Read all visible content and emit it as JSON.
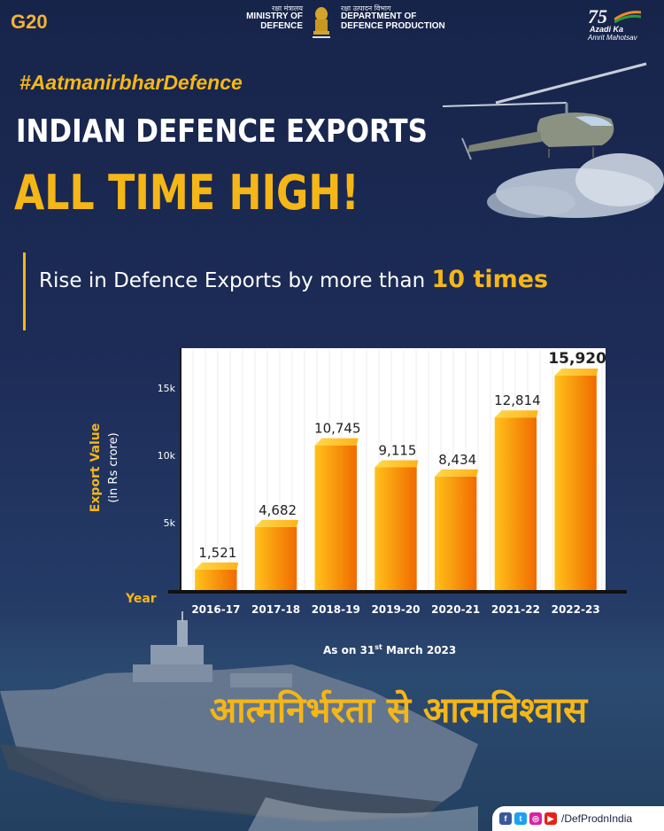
{
  "header": {
    "g20": "G20",
    "ministry_hindi": "रक्षा मंत्रालय",
    "ministry_en_1": "MINISTRY OF",
    "ministry_en_2": "DEFENCE",
    "ddp_hindi": "रक्षा उत्पादन विभाग",
    "ddp_en_1": "DEPARTMENT OF",
    "ddp_en_2": "DEFENCE PRODUCTION",
    "aka_number": "75",
    "aka_line1": "Azadi Ka",
    "aka_line2": "Amrit Mahotsav"
  },
  "hashtag": "#AatmanirbharDefence",
  "title_line1": "INDIAN DEFENCE EXPORTS",
  "title_line2": "ALL TIME HIGH!",
  "subtitle": {
    "text": "Rise in Defence Exports by more than ",
    "highlight": "10 times"
  },
  "footnote": {
    "prefix": "As on 31",
    "sup": "st",
    "suffix": " March 2023"
  },
  "slogan_hindi": "आत्मनिर्भरता से आत्मविश्वास",
  "social": {
    "handle": "/DefProdnIndia",
    "icons": [
      "facebook-icon",
      "twitter-icon",
      "instagram-icon",
      "youtube-icon"
    ]
  },
  "colors": {
    "accent": "#f5b617",
    "background": "#1c2a52",
    "bar_light": "#ffc21a",
    "bar_dark": "#f06a00"
  },
  "chart_data": {
    "type": "bar",
    "categories": [
      "2016-17",
      "2017-18",
      "2018-19",
      "2019-20",
      "2020-21",
      "2021-22",
      "2022-23"
    ],
    "values": [
      1521,
      4682,
      10745,
      9115,
      8434,
      12814,
      15920
    ],
    "value_labels": [
      "1,521",
      "4,682",
      "10,745",
      "9,115",
      "8,434",
      "12,814",
      "15,920"
    ],
    "ylabel": "Export Value",
    "ylabel_sub": "(in Rs crore)",
    "xlabel": "Year",
    "yticks": [
      5000,
      10000,
      15000
    ],
    "ytick_labels": [
      "5k",
      "10k",
      "15k"
    ],
    "ylim": [
      0,
      17500
    ],
    "grid": true
  }
}
